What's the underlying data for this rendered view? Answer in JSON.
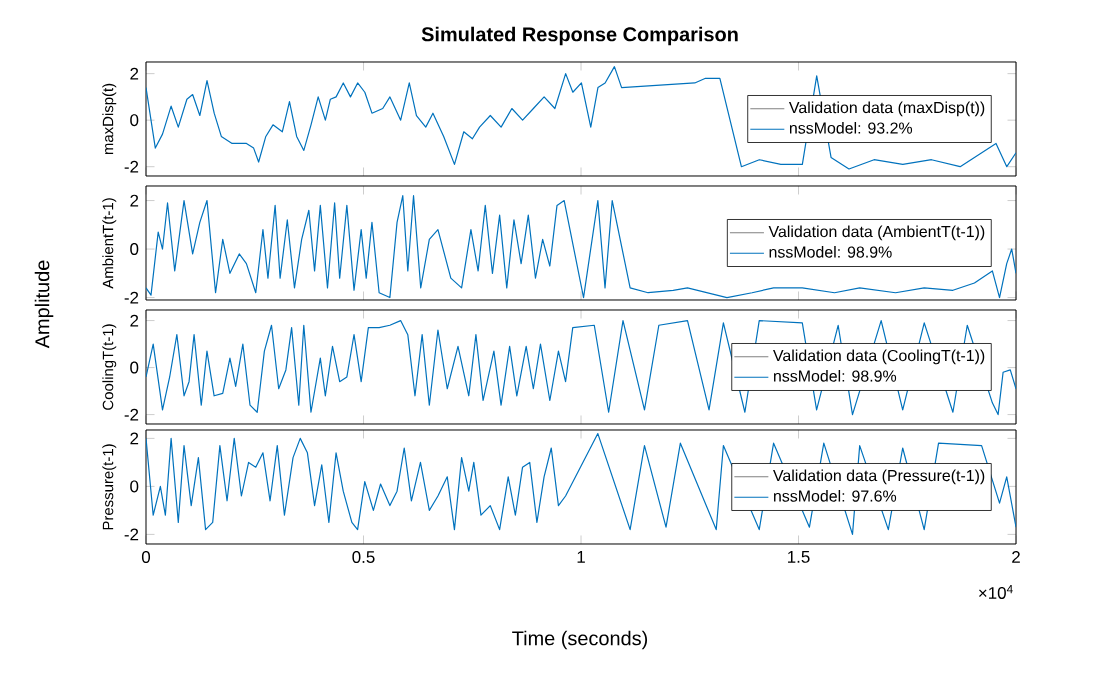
{
  "chart_data": [
    {
      "type": "line",
      "title": "Simulated Response Comparison",
      "ylabel": "maxDisp(t)",
      "annotations": [
        "Amplitude"
      ],
      "xlim": [
        0,
        2
      ],
      "ylim": [
        -2.4,
        2.5
      ],
      "xticks": [
        0,
        0.5,
        1,
        1.5,
        2
      ],
      "yticks": [
        -2,
        0,
        2
      ],
      "tick_labels": "y",
      "legend": "right",
      "series": [
        {
          "name": "Validation data (maxDisp(t))",
          "color": "#808080"
        },
        {
          "name": "nssModel: 93.2%",
          "color": "#0072bd",
          "x": [
            0,
            0.0214,
            0.0379,
            0.0577,
            0.0742,
            0.094,
            0.1072,
            0.1237,
            0.1402,
            0.1567,
            0.1731,
            0.1979,
            0.2309,
            0.2474,
            0.2589,
            0.2754,
            0.2919,
            0.3133,
            0.3298,
            0.3463,
            0.3628,
            0.3793,
            0.3958,
            0.4123,
            0.4238,
            0.437,
            0.4535,
            0.47,
            0.4865,
            0.503,
            0.5194,
            0.5442,
            0.5607,
            0.5854,
            0.6052,
            0.6217,
            0.6431,
            0.6596,
            0.6843,
            0.7091,
            0.7305,
            0.7503,
            0.7668,
            0.7915,
            0.8163,
            0.841,
            0.8657,
            0.8905,
            0.9152,
            0.9399,
            0.9647,
            0.9812,
            1.0009,
            1.0224,
            1.0389,
            1.0554,
            1.0768,
            1.0933,
            1.2615,
            1.2862,
            1.3192,
            1.3687,
            1.4099,
            1.4594,
            1.5088,
            1.5418,
            1.5748,
            1.616,
            1.6737,
            1.7397,
            1.8057,
            1.8716,
            1.954,
            1.9788,
            2
          ],
          "values": [
            1.4,
            -1.2,
            -0.6,
            0.6,
            -0.3,
            0.9,
            1.1,
            0.2,
            1.7,
            0.3,
            -0.7,
            -1.0,
            -1.0,
            -1.2,
            -1.8,
            -0.7,
            -0.2,
            -0.5,
            0.8,
            -0.7,
            -1.3,
            -0.2,
            1.0,
            0,
            0.9,
            1.0,
            1.6,
            1.0,
            1.6,
            1.2,
            0.3,
            0.5,
            1.0,
            0,
            1.6,
            0.2,
            -0.3,
            0.3,
            -0.7,
            -1.9,
            -0.5,
            -0.8,
            -0.3,
            0.2,
            -0.3,
            0.5,
            0,
            0.5,
            1.0,
            0.5,
            2.0,
            1.2,
            1.6,
            -0.3,
            1.4,
            1.6,
            2.3,
            1.4,
            1.6,
            1.8,
            1.8,
            -2.0,
            -1.7,
            -1.9,
            -1.9,
            1.9,
            -1.6,
            -2.1,
            -1.7,
            -1.9,
            -1.7,
            -2.0,
            -1.0,
            -2.0,
            -1.4
          ]
        }
      ]
    },
    {
      "type": "line",
      "ylabel": "AmbientT(t-1)",
      "xlim": [
        0,
        2
      ],
      "ylim": [
        -2.1,
        2.6
      ],
      "xticks": [
        0,
        0.5,
        1,
        1.5,
        2
      ],
      "yticks": [
        -2,
        0,
        2
      ],
      "tick_labels": "y",
      "legend": "right",
      "series": [
        {
          "name": "Validation data (AmbientT(t-1))",
          "color": "#808080"
        },
        {
          "name": "nssModel: 98.9%",
          "color": "#0072bd",
          "x": [
            0,
            0.0115,
            0.028,
            0.0379,
            0.0495,
            0.066,
            0.0874,
            0.1072,
            0.1237,
            0.1402,
            0.1599,
            0.1764,
            0.1929,
            0.2144,
            0.2308,
            0.2523,
            0.2688,
            0.2803,
            0.2968,
            0.3083,
            0.3248,
            0.3413,
            0.3578,
            0.3743,
            0.3875,
            0.4007,
            0.4172,
            0.4336,
            0.4452,
            0.4617,
            0.4782,
            0.4946,
            0.5062,
            0.5194,
            0.5359,
            0.5606,
            0.5771,
            0.5903,
            0.6018,
            0.615,
            0.6315,
            0.6513,
            0.6711,
            0.7007,
            0.7255,
            0.7469,
            0.7634,
            0.7799,
            0.7964,
            0.8129,
            0.8293,
            0.8458,
            0.8623,
            0.8788,
            0.8953,
            0.9118,
            0.9283,
            0.9448,
            0.9613,
            1.0058,
            1.0387,
            1.0552,
            1.0717,
            1.1129,
            1.1542,
            1.2119,
            1.2448,
            1.3355,
            1.3932,
            1.4427,
            1.5087,
            1.5828,
            1.6406,
            1.723,
            1.7889,
            1.8549,
            1.9044,
            1.9456,
            1.9621,
            1.9786,
            1.9901,
            2
          ],
          "values": [
            -1.6,
            -1.9,
            0.7,
            0,
            1.9,
            -0.9,
            2.0,
            -0.2,
            1.1,
            2.0,
            -1.8,
            0.4,
            -1.0,
            -0.2,
            -0.6,
            -1.8,
            0.8,
            -1.2,
            1.8,
            -1.2,
            1.2,
            -1.6,
            0.4,
            1.6,
            -0.9,
            1.8,
            -1.6,
            1.9,
            -1.2,
            1.8,
            -1.7,
            0.8,
            -1.2,
            1.1,
            -1.8,
            -2.0,
            1.1,
            2.2,
            -0.9,
            2.2,
            -1.6,
            0.4,
            0.8,
            -1.2,
            -1.6,
            0.8,
            -0.9,
            1.8,
            -1.0,
            1.4,
            -1.6,
            1.2,
            -0.6,
            1.4,
            -1.2,
            0.4,
            -0.7,
            1.8,
            2.0,
            -2.0,
            2.0,
            -1.6,
            2.0,
            -1.6,
            -1.8,
            -1.7,
            -1.6,
            -2.0,
            -1.8,
            -1.6,
            -1.6,
            -1.8,
            -1.6,
            -1.8,
            -1.6,
            -1.7,
            -1.4,
            -0.9,
            -2.0,
            -0.6,
            0,
            -1.0
          ]
        }
      ]
    },
    {
      "type": "line",
      "ylabel": "CoolingT(t-1)",
      "xlim": [
        0,
        2
      ],
      "ylim": [
        -2.4,
        2.45
      ],
      "xticks": [
        0,
        0.5,
        1,
        1.5,
        2
      ],
      "yticks": [
        -2,
        0,
        2
      ],
      "tick_labels": "y",
      "legend": "right",
      "series": [
        {
          "name": "Validation data (CoolingT(t-1))",
          "color": "#808080"
        },
        {
          "name": "nssModel: 98.9%",
          "color": "#0072bd",
          "x": [
            0,
            0.0165,
            0.0379,
            0.0544,
            0.0709,
            0.0874,
            0.0989,
            0.1105,
            0.127,
            0.1401,
            0.1566,
            0.1764,
            0.1929,
            0.2061,
            0.2226,
            0.2391,
            0.2556,
            0.2721,
            0.2885,
            0.305,
            0.3215,
            0.3347,
            0.3512,
            0.3627,
            0.3792,
            0.4007,
            0.4122,
            0.4287,
            0.4452,
            0.4617,
            0.4782,
            0.4946,
            0.5111,
            0.5359,
            0.5606,
            0.5853,
            0.6018,
            0.6183,
            0.6348,
            0.6513,
            0.6711,
            0.6925,
            0.7172,
            0.742,
            0.7584,
            0.7749,
            0.7997,
            0.8162,
            0.8359,
            0.8524,
            0.8739,
            0.8904,
            0.9068,
            0.9283,
            0.9481,
            0.9645,
            0.981,
            1.0305,
            1.0635,
            1.0965,
            1.1459,
            1.1789,
            1.2448,
            1.2943,
            1.3273,
            1.3767,
            1.4097,
            1.5087,
            1.5416,
            1.5911,
            1.6241,
            1.69,
            1.7395,
            1.789,
            1.8549,
            1.8879,
            1.9456,
            1.9588,
            1.9703,
            1.9868,
            2
          ],
          "values": [
            -0.4,
            1.0,
            -1.8,
            -0.4,
            1.4,
            -1.2,
            -0.6,
            1.4,
            -1.6,
            0.7,
            -1.2,
            -1.1,
            0.4,
            -0.8,
            1.0,
            -1.6,
            -1.9,
            0.7,
            1.8,
            -0.9,
            -0.1,
            1.7,
            -1.6,
            1.8,
            -1.9,
            0.4,
            -1.2,
            0.9,
            -0.6,
            -0.4,
            1.4,
            -0.6,
            1.7,
            1.7,
            1.8,
            2.0,
            1.4,
            -1.2,
            1.4,
            -1.6,
            1.6,
            -0.9,
            0.9,
            -1.2,
            1.4,
            -1.4,
            0.7,
            -1.6,
            0.9,
            -1.2,
            0.9,
            -0.9,
            1.0,
            -1.4,
            0.7,
            -0.6,
            1.7,
            1.8,
            -1.9,
            2.0,
            -1.8,
            1.8,
            2.0,
            -1.8,
            1.9,
            -1.9,
            2.0,
            1.9,
            -1.8,
            1.8,
            -2.0,
            2.0,
            -1.8,
            1.9,
            -1.9,
            1.8,
            -1.5,
            -2.0,
            -0.2,
            -0.1,
            -0.9
          ]
        }
      ]
    },
    {
      "type": "line",
      "ylabel": "Pressure(t-1)",
      "xlabel": "Time (seconds)",
      "annotations": [
        "×10$^{4}$"
      ],
      "xlim": [
        0,
        2
      ],
      "ylim": [
        -2.4,
        2.35
      ],
      "xticks": [
        0,
        0.5,
        1,
        1.5,
        2
      ],
      "yticks": [
        -2,
        0,
        2
      ],
      "legend": "right",
      "series": [
        {
          "name": "Validation data (Pressure(t-1))",
          "color": "#808080"
        },
        {
          "name": "nssModel: 97.6%",
          "color": "#0072bd",
          "x": [
            0,
            0.0165,
            0.033,
            0.0445,
            0.0577,
            0.0742,
            0.0874,
            0.1039,
            0.1204,
            0.1369,
            0.1533,
            0.1698,
            0.1863,
            0.2028,
            0.2193,
            0.2358,
            0.2523,
            0.2688,
            0.2852,
            0.3017,
            0.3182,
            0.338,
            0.3545,
            0.371,
            0.3875,
            0.404,
            0.4204,
            0.4369,
            0.4534,
            0.4732,
            0.4864,
            0.5029,
            0.5227,
            0.5392,
            0.5606,
            0.5771,
            0.5936,
            0.6101,
            0.6309,
            0.6513,
            0.6711,
            0.6925,
            0.709,
            0.7255,
            0.742,
            0.7535,
            0.77,
            0.7914,
            0.8129,
            0.8326,
            0.8491,
            0.8656,
            0.8821,
            0.8986,
            0.9151,
            0.9316,
            0.9481,
            0.9645,
            1.0387,
            1.1129,
            1.1459,
            1.1954,
            1.2284,
            1.3108,
            1.3273,
            1.4097,
            1.4427,
            1.5251,
            1.5581,
            1.6241,
            1.6406,
            1.7065,
            1.7395,
            1.7889,
            1.8219,
            1.9209,
            1.9621,
            1.9786,
            2
          ],
          "values": [
            2.0,
            -1.2,
            0,
            -1.2,
            2.0,
            -1.5,
            1.7,
            -0.8,
            1.2,
            -1.8,
            -1.5,
            1.7,
            -0.6,
            2.0,
            -0.4,
            1.0,
            0.8,
            1.4,
            -0.6,
            1.7,
            -1.2,
            1.2,
            2.0,
            1.4,
            -0.8,
            0.9,
            -1.5,
            1.4,
            -0.2,
            -1.5,
            -1.8,
            0.2,
            -1.0,
            0.1,
            -0.8,
            -0.2,
            1.6,
            -0.6,
            1.0,
            -1.0,
            -0.4,
            0.4,
            -1.8,
            1.2,
            -0.2,
            1.0,
            -1.2,
            -0.8,
            -1.8,
            0.4,
            -1.2,
            0.8,
            1.0,
            -1.5,
            0.4,
            1.6,
            -0.8,
            -0.4,
            2.2,
            -1.8,
            1.7,
            -1.7,
            1.8,
            -1.8,
            1.7,
            -1.8,
            1.8,
            -1.7,
            1.8,
            -2.0,
            1.7,
            -1.8,
            1.6,
            -1.8,
            1.8,
            1.7,
            -0.7,
            0.4,
            -1.7
          ]
        }
      ]
    }
  ]
}
